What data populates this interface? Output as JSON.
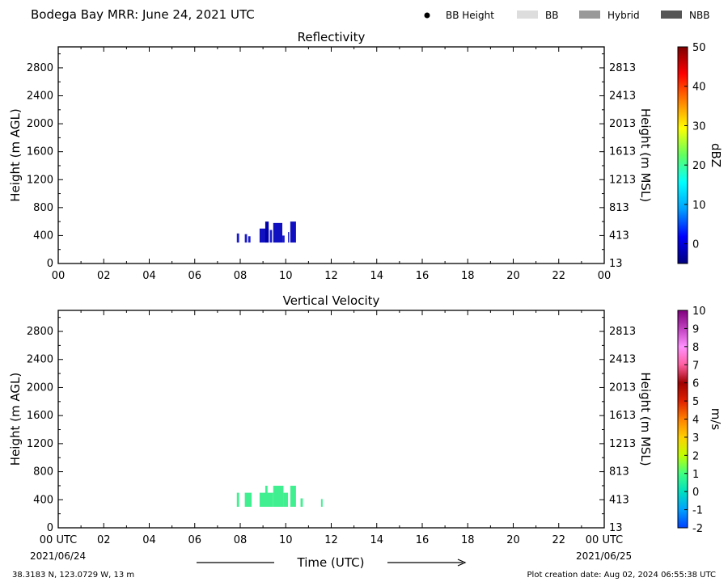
{
  "header": {
    "title": "Bodega Bay MRR:  June 24, 2021 UTC",
    "legend": [
      {
        "label": "BB Height",
        "kind": "dot",
        "color": "#000000"
      },
      {
        "label": "BB",
        "kind": "swatch",
        "color": "#dddddd"
      },
      {
        "label": "Hybrid",
        "kind": "swatch",
        "color": "#999999"
      },
      {
        "label": "NBB",
        "kind": "swatch",
        "color": "#555555"
      }
    ]
  },
  "footer": {
    "location": "38.3183 N, 123.0729 W, 13 m",
    "created": "Plot creation date: Aug 02, 2024 06:55:38 UTC",
    "time_label": "Time (UTC)",
    "date_start": "2021/06/24",
    "date_end": "2021/06/25"
  },
  "chart_data": [
    {
      "type": "heatmap",
      "title": "Reflectivity",
      "ylabel": "Height (m AGL)",
      "y2label": "Height (m MSL)",
      "xlim": [
        0,
        24
      ],
      "ylim": [
        0,
        3100
      ],
      "x_ticks": [
        "00",
        "02",
        "04",
        "06",
        "08",
        "10",
        "12",
        "14",
        "16",
        "18",
        "20",
        "22",
        "00"
      ],
      "y_ticks": [
        0,
        400,
        800,
        1200,
        1600,
        2000,
        2400,
        2800
      ],
      "y2_ticks": [
        13,
        413,
        813,
        1213,
        1613,
        2013,
        2413,
        2813
      ],
      "colorbar": {
        "label": "dBZ",
        "range": [
          -5,
          50
        ],
        "ticks": [
          0,
          10,
          20,
          30,
          40,
          50
        ],
        "colors": [
          "#00007f",
          "#0000ff",
          "#00a0ff",
          "#00ffff",
          "#60ff60",
          "#ffff00",
          "#ff8000",
          "#ff0000",
          "#7f0000"
        ]
      },
      "echoes": [
        {
          "t0": 7.85,
          "t1": 7.95,
          "h0": 300,
          "h1": 430,
          "color": "#1a1acc"
        },
        {
          "t0": 8.2,
          "t1": 8.3,
          "h0": 300,
          "h1": 420,
          "color": "#1a1acc"
        },
        {
          "t0": 8.35,
          "t1": 8.45,
          "h0": 300,
          "h1": 390,
          "color": "#1a1acc"
        },
        {
          "t0": 8.85,
          "t1": 9.25,
          "h0": 300,
          "h1": 500,
          "color": "#1010c0"
        },
        {
          "t0": 9.1,
          "t1": 9.25,
          "h0": 300,
          "h1": 600,
          "color": "#0000aa"
        },
        {
          "t0": 9.3,
          "t1": 9.4,
          "h0": 300,
          "h1": 480,
          "color": "#1a1acc"
        },
        {
          "t0": 9.45,
          "t1": 9.85,
          "h0": 300,
          "h1": 580,
          "color": "#1010c0"
        },
        {
          "t0": 9.85,
          "t1": 9.95,
          "h0": 300,
          "h1": 400,
          "color": "#1a1acc"
        },
        {
          "t0": 10.1,
          "t1": 10.15,
          "h0": 300,
          "h1": 450,
          "color": "#1a1acc"
        },
        {
          "t0": 10.2,
          "t1": 10.45,
          "h0": 300,
          "h1": 600,
          "color": "#1010c0"
        }
      ]
    },
    {
      "type": "heatmap",
      "title": "Vertical Velocity",
      "ylabel": "Height (m AGL)",
      "y2label": "Height (m MSL)",
      "xlabel": "Time (UTC)",
      "xlim": [
        0,
        24
      ],
      "ylim": [
        0,
        3100
      ],
      "x_ticks": [
        "00 UTC",
        "02",
        "04",
        "06",
        "08",
        "10",
        "12",
        "14",
        "16",
        "18",
        "20",
        "22",
        "00 UTC"
      ],
      "y_ticks": [
        0,
        400,
        800,
        1200,
        1600,
        2000,
        2400,
        2800
      ],
      "y2_ticks": [
        13,
        413,
        813,
        1213,
        1613,
        2013,
        2413,
        2813
      ],
      "colorbar": {
        "label": "m/s",
        "range": [
          -2,
          10
        ],
        "ticks": [
          -2,
          -1,
          0,
          1,
          2,
          3,
          4,
          5,
          6,
          7,
          8,
          9,
          10
        ],
        "colors": [
          "#0040ff",
          "#00a0ff",
          "#00e0c0",
          "#40ff80",
          "#c0ff00",
          "#ffd000",
          "#ff8000",
          "#e02000",
          "#a00000",
          "#ff60a0",
          "#ff90ff",
          "#c040c0",
          "#800080"
        ]
      },
      "echoes": [
        {
          "t0": 7.85,
          "t1": 7.95,
          "h0": 300,
          "h1": 500,
          "color": "#40f090"
        },
        {
          "t0": 8.2,
          "t1": 8.5,
          "h0": 300,
          "h1": 500,
          "color": "#40f090"
        },
        {
          "t0": 8.85,
          "t1": 9.45,
          "h0": 300,
          "h1": 500,
          "color": "#40f090"
        },
        {
          "t0": 9.1,
          "t1": 9.2,
          "h0": 300,
          "h1": 600,
          "color": "#40f090"
        },
        {
          "t0": 9.45,
          "t1": 9.9,
          "h0": 300,
          "h1": 600,
          "color": "#40f090"
        },
        {
          "t0": 9.9,
          "t1": 10.1,
          "h0": 300,
          "h1": 500,
          "color": "#40f090"
        },
        {
          "t0": 10.2,
          "t1": 10.45,
          "h0": 300,
          "h1": 600,
          "color": "#40f090"
        },
        {
          "t0": 10.65,
          "t1": 10.75,
          "h0": 300,
          "h1": 420,
          "color": "#40f090"
        },
        {
          "t0": 11.55,
          "t1": 11.62,
          "h0": 300,
          "h1": 410,
          "color": "#40f090"
        }
      ]
    }
  ]
}
